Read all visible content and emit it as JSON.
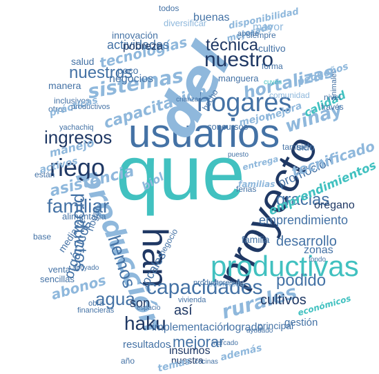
{
  "palette": {
    "navy": "#1f3864",
    "teal": "#41c1c0",
    "steel": "#4472a5",
    "sky": "#8fb8dc",
    "pale": "#b9d6ee",
    "midblue": "#2e6099"
  },
  "main_words": {
    "que": "que",
    "usuarios": "usuarios",
    "proyecto": "proyecto",
    "del": "del",
    "produccion": "producción",
    "han": "han",
    "productivas": "productivas",
    "hogares": "hogares",
    "nuestro": "nuestro",
    "riego": "riego",
    "sistemas": "sistemas",
    "capacitacion": "capacitación",
    "hortalizas": "hortalizas",
    "tecnica": "técnica",
    "nuestros": "nuestros",
    "familiar": "familiar",
    "ingresos": "ingresos",
    "winay": "wiñay",
    "haku": "haku",
    "capacidades": "capacidades",
    "rurales": "rurales",
    "productos": "productos",
    "hemos": "hemos",
    "asistencia": "asistencia",
    "agua": "agua",
    "gracias": "gracias",
    "desarrollo": "desarrollo",
    "podido": "podido",
    "mejorar": "mejorar",
    "tecnologias": "tecnologías",
    "actividades": "actividades",
    "innovacion": "innovación",
    "cultivos": "cultivos",
    "emprendimiento": "emprendimiento",
    "emprendimientos": "emprendimientos",
    "promocion": "promoción",
    "implementacion": "implementación",
    "resultados": "resultados",
    "abonos": "abonos",
    "organicos": "orgánicos",
    "locales": "locales",
    "son": "son",
    "asi": "así",
    "sido": "sido",
    "tecnificado": "tecnificado",
    "calidad": "calidad",
    "oregano": "orégano",
    "manejo": "manejo",
    "pobreza": "pobreza",
    "negocios": "negocios",
    "mayor": "mayor",
    "cultivo": "cultivo",
    "buenas": "buenas",
    "logrado": "logrado",
    "gestion": "gestión",
    "insumos": "insumos",
    "principal": "principal",
    "zonas": "zonas",
    "nuestra": "nuestra",
    "ademas": "además",
    "familia": "familia",
    "temas": "temas",
    "mejora": "mejora",
    "todos": "todos",
    "salud": "salud",
    "forma": "forma",
    "traves": "través",
    "animales": "animales",
    "nivel": "nivel",
    "pequenos": "pequeños",
    "comercial": "comercial",
    "economicos": "económicos",
    "productores": "productores",
    "vivienda": "vivienda",
    "manguera": "manguera",
    "concursos": "concursos",
    "comunidad": "comunidad",
    "siempre": "siempre",
    "mejorado": "mejorado",
    "disponibilidad": "disponibilidad",
    "aporte": "aporte",
    "manera": "manera",
    "otros": "otros",
    "inclusivos": "inclusivos",
    "practicas": "prácticas",
    "yachachiq": "yachachiq",
    "activos": "activos",
    "alimentaria": "alimentaria",
    "mediante": "mediante",
    "hogar": "hogar",
    "venta": "venta",
    "sencillas": "sencillas",
    "base": "base",
    "estan": "están",
    "obra": "obra",
    "poco": "poco",
    "hecho": "hecho",
    "biol": "biol",
    "ferias": "ferias",
    "apoyado": "apoyado",
    "financieras": "financieras",
    "ano": "año",
    "espacio": "espacio",
    "mejor": "mejor",
    "productivos": "productivos",
    "diversificar": "diversificar",
    "cuyes": "cuyes",
    "tambien": "también",
    "entrega": "entrega",
    "familias": "familias",
    "negocio": "negocio",
    "mercado": "mercado",
    "puesto": "puesto",
    "ayudado": "ayudado",
    "cocinas": "cocinas",
    "crianza": "crianza",
    "fondo": "fondo"
  }
}
